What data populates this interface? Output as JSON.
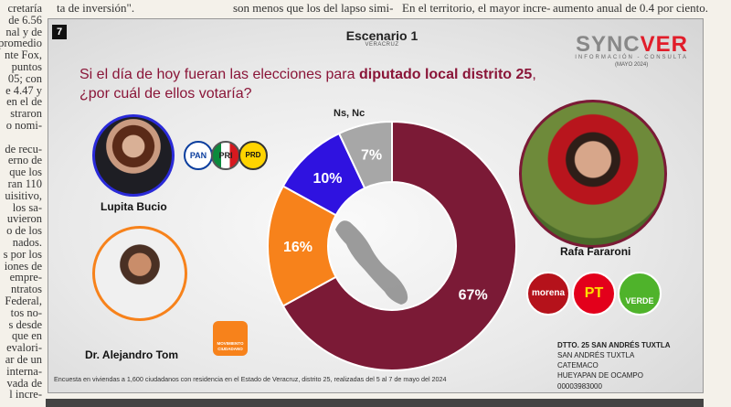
{
  "newspaper": {
    "top_fragments": [
      "ta de inversión\".",
      "son menos que los del lapso simi-",
      "En el territorio, el mayor incre-",
      "aumento anual de 0.4 por ciento."
    ],
    "left_column_lines": [
      "cretaría",
      "de 6.56",
      "nal y de",
      "promedio",
      "nte Fox,",
      "puntos",
      "05; con",
      "e 4.47 y",
      "en el de",
      "straron",
      "o nomi-",
      "",
      "de recu-",
      "erno de",
      "que los",
      "ran 110",
      "uisitivo,",
      "los sa-",
      "uvieron",
      "o de los",
      "nados.",
      "s por los",
      "iones de",
      "empre-",
      "ntratos",
      "Federal,",
      "tos no-",
      "s desde",
      "que en",
      "evalori-",
      "ar de un",
      "interna-",
      "vada de",
      "l incre-"
    ]
  },
  "figure": {
    "number": "7",
    "scenario_title": "Escenario 1",
    "scenario_subtitle": "VERACRUZ",
    "brand_a": "SYNC",
    "brand_b": "VER",
    "brand_tagline": "INFORMACIÓN - CONSULTA",
    "brand_date": "(MAYO 2024)",
    "question_part1": "Si el día de hoy fueran las elecciones para ",
    "question_bold": "diputado local distrito 25",
    "question_part2": ",",
    "question_line2": "¿por cuál de ellos votaría?",
    "footnote": "Encuesta en viviendas a 1,600 ciudadanos con residencia en el Estado de Veracruz, distrito 25, realizadas del 5 al 7 de mayo del 2024",
    "district_title": "DTTO. 25 SAN ANDRÉS TUXTLA",
    "district_places": [
      "SAN ANDRÉS TUXTLA",
      "CATEMACO",
      "HUEYAPAN DE OCAMPO"
    ],
    "ine_code": "00003983000"
  },
  "candidates": {
    "c1": {
      "name": "Lupita Bucio",
      "parties": [
        "PAN",
        "PRI",
        "PRD"
      ]
    },
    "c2": {
      "name": "Dr. Alejandro Tom",
      "party": "MOVIMIENTO CIUDADANO"
    },
    "c3": {
      "name": "Rafa Fararoni",
      "parties": [
        "morena",
        "PT",
        "VERDE"
      ]
    }
  },
  "colors": {
    "morena": "#7b1a36",
    "mc": "#f7821b",
    "pan": "#2f12e0",
    "nsnc": "#a7a7a7",
    "question": "#8a1538"
  },
  "chart_data": {
    "type": "pie",
    "donut": true,
    "slices": [
      {
        "name": "Rafa Fararoni",
        "value": 67,
        "label": "67%"
      },
      {
        "name": "Dr. Alejandro Tom",
        "value": 16,
        "label": "16%"
      },
      {
        "name": "Lupita Bucio",
        "value": 10,
        "label": "10%"
      },
      {
        "name": "Ns, Nc",
        "value": 7,
        "label": "7%"
      }
    ],
    "outside_label": "Ns, Nc"
  }
}
